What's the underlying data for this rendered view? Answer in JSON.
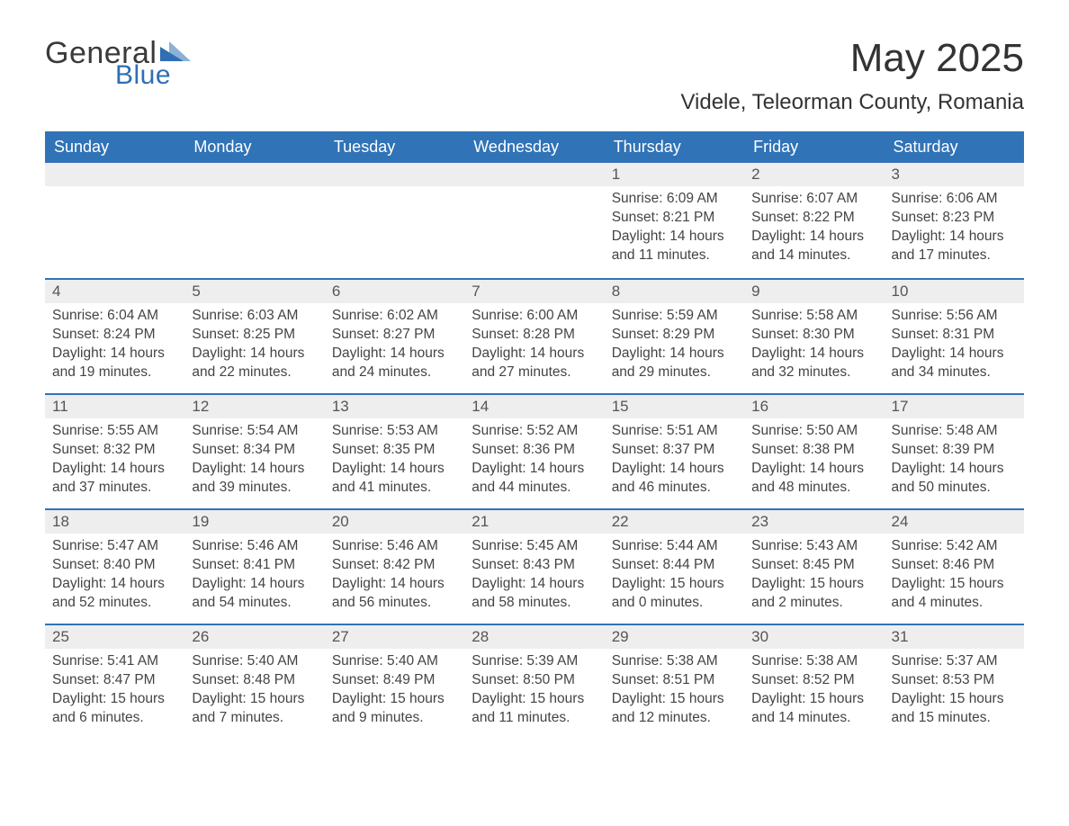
{
  "logo": {
    "text_general": "General",
    "text_blue": "Blue",
    "icon_color": "#2f6fb3"
  },
  "title": "May 2025",
  "location": "Videle, Teleorman County, Romania",
  "colors": {
    "header_bg": "#3073b7",
    "header_text": "#ffffff",
    "daynum_bg": "#eeeeee",
    "row_border": "#3073b7",
    "body_text": "#444444",
    "page_bg": "#ffffff"
  },
  "weekdays": [
    "Sunday",
    "Monday",
    "Tuesday",
    "Wednesday",
    "Thursday",
    "Friday",
    "Saturday"
  ],
  "weeks": [
    [
      {
        "empty": true
      },
      {
        "empty": true
      },
      {
        "empty": true
      },
      {
        "empty": true
      },
      {
        "day": "1",
        "sunrise": "Sunrise: 6:09 AM",
        "sunset": "Sunset: 8:21 PM",
        "daylight1": "Daylight: 14 hours",
        "daylight2": "and 11 minutes."
      },
      {
        "day": "2",
        "sunrise": "Sunrise: 6:07 AM",
        "sunset": "Sunset: 8:22 PM",
        "daylight1": "Daylight: 14 hours",
        "daylight2": "and 14 minutes."
      },
      {
        "day": "3",
        "sunrise": "Sunrise: 6:06 AM",
        "sunset": "Sunset: 8:23 PM",
        "daylight1": "Daylight: 14 hours",
        "daylight2": "and 17 minutes."
      }
    ],
    [
      {
        "day": "4",
        "sunrise": "Sunrise: 6:04 AM",
        "sunset": "Sunset: 8:24 PM",
        "daylight1": "Daylight: 14 hours",
        "daylight2": "and 19 minutes."
      },
      {
        "day": "5",
        "sunrise": "Sunrise: 6:03 AM",
        "sunset": "Sunset: 8:25 PM",
        "daylight1": "Daylight: 14 hours",
        "daylight2": "and 22 minutes."
      },
      {
        "day": "6",
        "sunrise": "Sunrise: 6:02 AM",
        "sunset": "Sunset: 8:27 PM",
        "daylight1": "Daylight: 14 hours",
        "daylight2": "and 24 minutes."
      },
      {
        "day": "7",
        "sunrise": "Sunrise: 6:00 AM",
        "sunset": "Sunset: 8:28 PM",
        "daylight1": "Daylight: 14 hours",
        "daylight2": "and 27 minutes."
      },
      {
        "day": "8",
        "sunrise": "Sunrise: 5:59 AM",
        "sunset": "Sunset: 8:29 PM",
        "daylight1": "Daylight: 14 hours",
        "daylight2": "and 29 minutes."
      },
      {
        "day": "9",
        "sunrise": "Sunrise: 5:58 AM",
        "sunset": "Sunset: 8:30 PM",
        "daylight1": "Daylight: 14 hours",
        "daylight2": "and 32 minutes."
      },
      {
        "day": "10",
        "sunrise": "Sunrise: 5:56 AM",
        "sunset": "Sunset: 8:31 PM",
        "daylight1": "Daylight: 14 hours",
        "daylight2": "and 34 minutes."
      }
    ],
    [
      {
        "day": "11",
        "sunrise": "Sunrise: 5:55 AM",
        "sunset": "Sunset: 8:32 PM",
        "daylight1": "Daylight: 14 hours",
        "daylight2": "and 37 minutes."
      },
      {
        "day": "12",
        "sunrise": "Sunrise: 5:54 AM",
        "sunset": "Sunset: 8:34 PM",
        "daylight1": "Daylight: 14 hours",
        "daylight2": "and 39 minutes."
      },
      {
        "day": "13",
        "sunrise": "Sunrise: 5:53 AM",
        "sunset": "Sunset: 8:35 PM",
        "daylight1": "Daylight: 14 hours",
        "daylight2": "and 41 minutes."
      },
      {
        "day": "14",
        "sunrise": "Sunrise: 5:52 AM",
        "sunset": "Sunset: 8:36 PM",
        "daylight1": "Daylight: 14 hours",
        "daylight2": "and 44 minutes."
      },
      {
        "day": "15",
        "sunrise": "Sunrise: 5:51 AM",
        "sunset": "Sunset: 8:37 PM",
        "daylight1": "Daylight: 14 hours",
        "daylight2": "and 46 minutes."
      },
      {
        "day": "16",
        "sunrise": "Sunrise: 5:50 AM",
        "sunset": "Sunset: 8:38 PM",
        "daylight1": "Daylight: 14 hours",
        "daylight2": "and 48 minutes."
      },
      {
        "day": "17",
        "sunrise": "Sunrise: 5:48 AM",
        "sunset": "Sunset: 8:39 PM",
        "daylight1": "Daylight: 14 hours",
        "daylight2": "and 50 minutes."
      }
    ],
    [
      {
        "day": "18",
        "sunrise": "Sunrise: 5:47 AM",
        "sunset": "Sunset: 8:40 PM",
        "daylight1": "Daylight: 14 hours",
        "daylight2": "and 52 minutes."
      },
      {
        "day": "19",
        "sunrise": "Sunrise: 5:46 AM",
        "sunset": "Sunset: 8:41 PM",
        "daylight1": "Daylight: 14 hours",
        "daylight2": "and 54 minutes."
      },
      {
        "day": "20",
        "sunrise": "Sunrise: 5:46 AM",
        "sunset": "Sunset: 8:42 PM",
        "daylight1": "Daylight: 14 hours",
        "daylight2": "and 56 minutes."
      },
      {
        "day": "21",
        "sunrise": "Sunrise: 5:45 AM",
        "sunset": "Sunset: 8:43 PM",
        "daylight1": "Daylight: 14 hours",
        "daylight2": "and 58 minutes."
      },
      {
        "day": "22",
        "sunrise": "Sunrise: 5:44 AM",
        "sunset": "Sunset: 8:44 PM",
        "daylight1": "Daylight: 15 hours",
        "daylight2": "and 0 minutes."
      },
      {
        "day": "23",
        "sunrise": "Sunrise: 5:43 AM",
        "sunset": "Sunset: 8:45 PM",
        "daylight1": "Daylight: 15 hours",
        "daylight2": "and 2 minutes."
      },
      {
        "day": "24",
        "sunrise": "Sunrise: 5:42 AM",
        "sunset": "Sunset: 8:46 PM",
        "daylight1": "Daylight: 15 hours",
        "daylight2": "and 4 minutes."
      }
    ],
    [
      {
        "day": "25",
        "sunrise": "Sunrise: 5:41 AM",
        "sunset": "Sunset: 8:47 PM",
        "daylight1": "Daylight: 15 hours",
        "daylight2": "and 6 minutes."
      },
      {
        "day": "26",
        "sunrise": "Sunrise: 5:40 AM",
        "sunset": "Sunset: 8:48 PM",
        "daylight1": "Daylight: 15 hours",
        "daylight2": "and 7 minutes."
      },
      {
        "day": "27",
        "sunrise": "Sunrise: 5:40 AM",
        "sunset": "Sunset: 8:49 PM",
        "daylight1": "Daylight: 15 hours",
        "daylight2": "and 9 minutes."
      },
      {
        "day": "28",
        "sunrise": "Sunrise: 5:39 AM",
        "sunset": "Sunset: 8:50 PM",
        "daylight1": "Daylight: 15 hours",
        "daylight2": "and 11 minutes."
      },
      {
        "day": "29",
        "sunrise": "Sunrise: 5:38 AM",
        "sunset": "Sunset: 8:51 PM",
        "daylight1": "Daylight: 15 hours",
        "daylight2": "and 12 minutes."
      },
      {
        "day": "30",
        "sunrise": "Sunrise: 5:38 AM",
        "sunset": "Sunset: 8:52 PM",
        "daylight1": "Daylight: 15 hours",
        "daylight2": "and 14 minutes."
      },
      {
        "day": "31",
        "sunrise": "Sunrise: 5:37 AM",
        "sunset": "Sunset: 8:53 PM",
        "daylight1": "Daylight: 15 hours",
        "daylight2": "and 15 minutes."
      }
    ]
  ]
}
